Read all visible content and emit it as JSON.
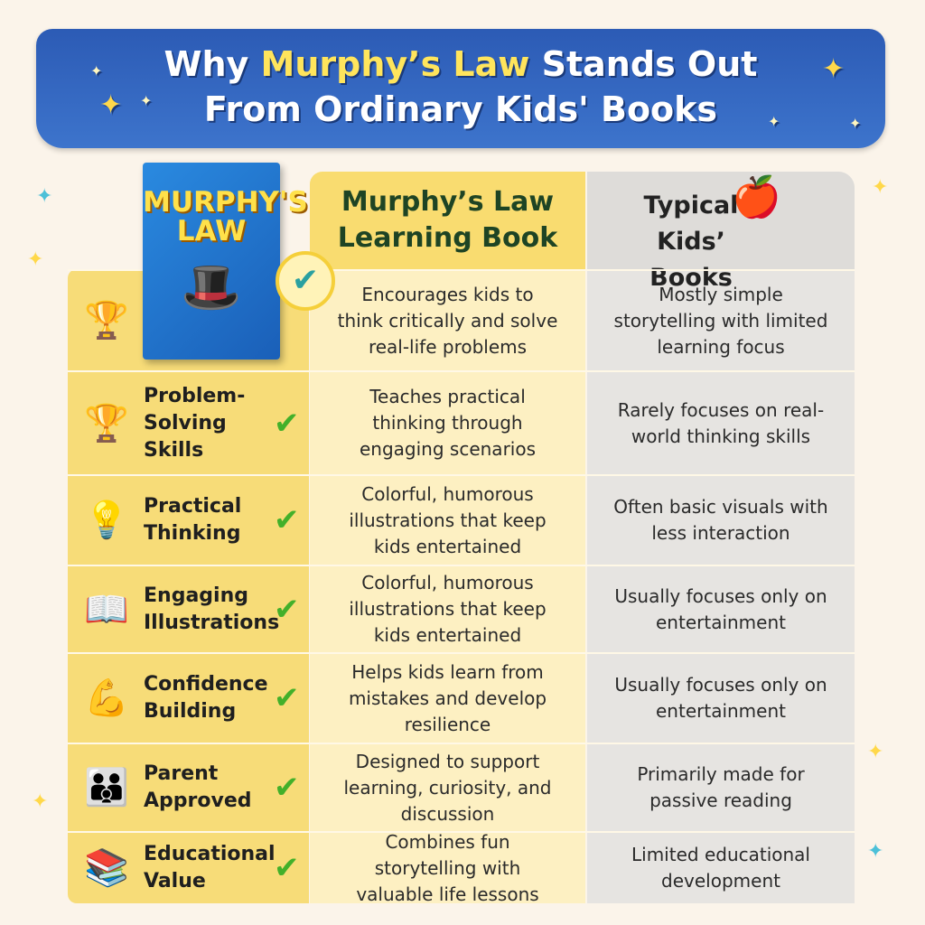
{
  "banner": {
    "title_pre": "Why ",
    "title_highlight": "Murphy’s Law",
    "title_post": " Stands Out",
    "title_line2": "From Ordinary Kids' Books"
  },
  "book_cover": {
    "title": "MURPHY'S LAW"
  },
  "columns": {
    "murphy": "Murphy’s Law Learning Book",
    "typical": "Typical Kids’ Books"
  },
  "colors": {
    "banner": "#2c5bb5",
    "highlight": "#ffe55c",
    "check": "#43b02a",
    "left_column": "#f7dc78",
    "murphy_column": "#fdf0c2",
    "typical_column": "#e6e4e1"
  },
  "rows": [
    {
      "label": "",
      "icon": "trophy-icon",
      "murphy": "Encourages kids to think critically and solve real-life problems",
      "typical": "Mostly simple storytelling with limited learning focus"
    },
    {
      "label": "Problem-Solving Skills",
      "icon": "trophy-icon",
      "murphy": "Teaches practical thinking through engaging scenarios",
      "typical": "Rarely focuses on real-world thinking skills"
    },
    {
      "label": "Practical Thinking",
      "icon": "lightbulb-icon",
      "murphy": "Colorful, humorous illustrations that keep kids entertained",
      "typical": "Often basic visuals with less interaction"
    },
    {
      "label": "Engaging Illustrations",
      "icon": "open-book-icon",
      "murphy": "Colorful, humorous illustrations that keep kids entertained",
      "typical": "Usually focuses only on entertainment"
    },
    {
      "label": "Confidence Building",
      "icon": "flexed-arm-icon",
      "murphy": "Helps kids learn from mistakes and develop resilience",
      "typical": "Usually focuses only on entertainment"
    },
    {
      "label": "Parent Approved",
      "icon": "family-icon",
      "murphy": "Designed to support learning, curiosity, and discussion",
      "typical": "Primarily made for passive reading"
    },
    {
      "label": "Educational Value",
      "icon": "books-apple-icon",
      "murphy": "Combines fun storytelling with valuable life lessons",
      "typical": "Limited educational development"
    }
  ]
}
